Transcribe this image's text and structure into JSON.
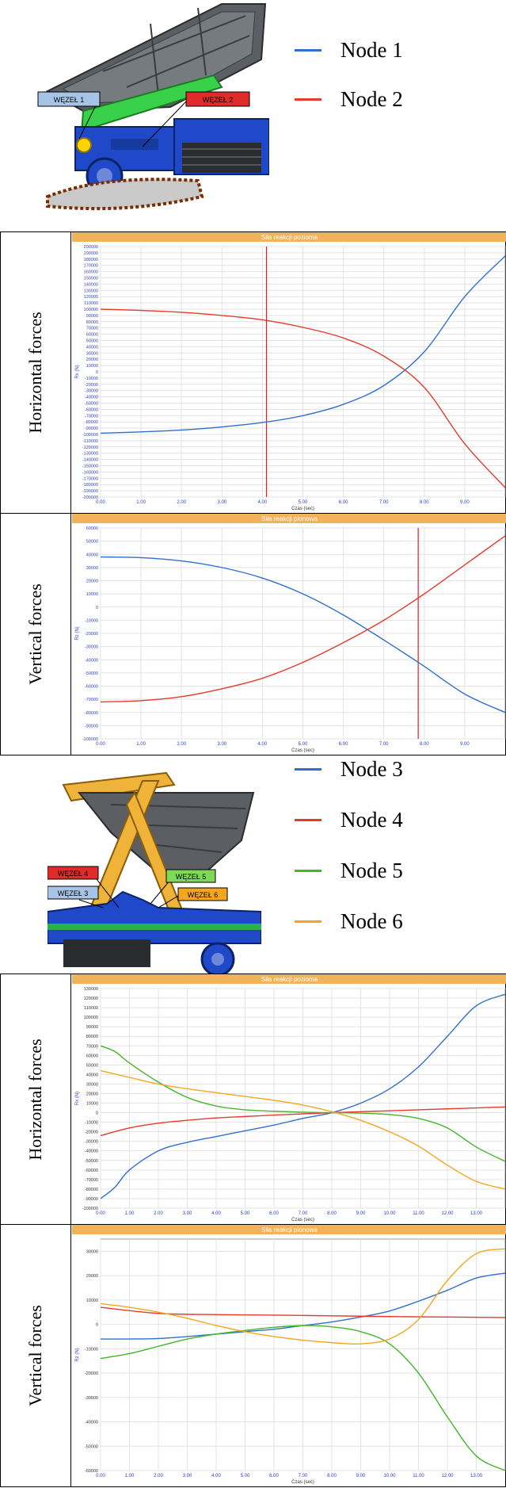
{
  "top_legend": [
    {
      "label": "Node 1",
      "color": "#2f6fd0"
    },
    {
      "label": "Node 2",
      "color": "#e53b2a"
    }
  ],
  "top_tags": {
    "wezel1": "WĘZEŁ 1",
    "wezel2": "WĘZEŁ 2"
  },
  "bottom_legend": [
    {
      "label": "Node 3",
      "color": "#2f6fd0"
    },
    {
      "label": "Node 4",
      "color": "#e53b2a"
    },
    {
      "label": "Node 5",
      "color": "#45b52a"
    },
    {
      "label": "Node 6",
      "color": "#f5a51e"
    }
  ],
  "bottom_tags": {
    "wezel3": "WĘZEŁ 3",
    "wezel4": "WĘZEŁ 4",
    "wezel5": "WĘZEŁ 5",
    "wezel6": "WĘZEŁ 6"
  },
  "row_labels": {
    "p1": "Horizontal forces",
    "p2": "Vertical forces",
    "p3": "Horizontal forces",
    "p4": "Vertical forces"
  },
  "chart_data": [
    {
      "id": "p1",
      "type": "line",
      "title": "Siła reakcji pozioma",
      "xlabel": "Czas (sec)",
      "ylabel": "Rx (N)",
      "xlim": [
        0,
        10
      ],
      "ylim": [
        -200000,
        200000
      ],
      "x_ticks": [
        0,
        1,
        2,
        3,
        4,
        5,
        6,
        7,
        8,
        9
      ],
      "x_tick_labels": [
        "0.00",
        "1.00",
        "2.00",
        "3.00",
        "4.00",
        "5.00",
        "6.00",
        "7.00",
        "8.00",
        "9.00"
      ],
      "y_tick_step": 10000,
      "cursor_x": 4.1,
      "series": [
        {
          "color": "#2f6fd0",
          "x": [
            0,
            1,
            2,
            3,
            4,
            5,
            6,
            7,
            8,
            9,
            10
          ],
          "y": [
            -98000,
            -96000,
            -93000,
            -88000,
            -81000,
            -70000,
            -52000,
            -22000,
            32000,
            120000,
            185000
          ]
        },
        {
          "color": "#e53b2a",
          "x": [
            0,
            1,
            2,
            3,
            4,
            5,
            6,
            7,
            8,
            9,
            10
          ],
          "y": [
            100000,
            98000,
            95000,
            90000,
            83000,
            71000,
            54000,
            25000,
            -25000,
            -115000,
            -185000
          ]
        }
      ]
    },
    {
      "id": "p2",
      "type": "line",
      "title": "Siła reakcji pionowa",
      "xlabel": "Czas (sec)",
      "ylabel": "Rz (N)",
      "xlim": [
        0,
        10
      ],
      "ylim": [
        -100000,
        60000
      ],
      "x_ticks": [
        0,
        1,
        2,
        3,
        4,
        5,
        6,
        7,
        8,
        9
      ],
      "x_tick_labels": [
        "0.00",
        "1.00",
        "2.00",
        "3.00",
        "4.00",
        "5.00",
        "6.00",
        "7.00",
        "8.00",
        "9.00"
      ],
      "y_tick_step": 10000,
      "cursor_x": 7.85,
      "series": [
        {
          "color": "#2f6fd0",
          "x": [
            0,
            1,
            2,
            3,
            4,
            5,
            6,
            7,
            8,
            9,
            10
          ],
          "y": [
            38000,
            37500,
            35000,
            30000,
            22000,
            10000,
            -6000,
            -25000,
            -45000,
            -66000,
            -80000
          ]
        },
        {
          "color": "#e53b2a",
          "x": [
            0,
            1,
            2,
            3,
            4,
            5,
            6,
            7,
            8,
            9,
            10
          ],
          "y": [
            -72000,
            -71000,
            -68000,
            -62000,
            -54000,
            -42000,
            -27000,
            -10000,
            10000,
            32000,
            54000
          ]
        }
      ]
    },
    {
      "id": "p3",
      "type": "line",
      "title": "Siła reakcji pozioma",
      "xlabel": "Czas (sec)",
      "ylabel": "Rx (N)",
      "xlim": [
        0,
        14
      ],
      "ylim": [
        -100000,
        130000
      ],
      "x_ticks": [
        0,
        1,
        2,
        3,
        4,
        5,
        6,
        7,
        8,
        9,
        10,
        11,
        12,
        13
      ],
      "x_tick_labels": [
        "0.00",
        "1.00",
        "2.00",
        "3.00",
        "4.00",
        "5.00",
        "6.00",
        "7.00",
        "8.00",
        "9.00",
        "10.00",
        "11.00",
        "12.00",
        "13.00"
      ],
      "y_tick_step": 10000,
      "series": [
        {
          "color": "#2f6fd0",
          "x": [
            0,
            0.5,
            1,
            2,
            3,
            4,
            5,
            6,
            7,
            8,
            9,
            10,
            11,
            12,
            13,
            14
          ],
          "y": [
            -90000,
            -78000,
            -60000,
            -40000,
            -31000,
            -25000,
            -19000,
            -13000,
            -6000,
            0,
            10000,
            25000,
            48000,
            80000,
            112000,
            124000
          ]
        },
        {
          "color": "#e53b2a",
          "x": [
            0,
            1,
            2,
            3,
            4,
            5,
            6,
            7,
            8,
            9,
            10,
            11,
            12,
            13,
            14
          ],
          "y": [
            -24000,
            -16000,
            -11000,
            -8000,
            -5500,
            -4000,
            -2500,
            -1200,
            0,
            1000,
            2000,
            3000,
            4000,
            5000,
            6000
          ]
        },
        {
          "color": "#45b52a",
          "x": [
            0,
            0.5,
            1,
            2,
            3,
            4,
            5,
            6,
            7,
            8,
            9,
            10,
            11,
            12,
            13,
            14
          ],
          "y": [
            70000,
            64000,
            52000,
            32000,
            16000,
            7000,
            3000,
            1500,
            500,
            0,
            -500,
            -2000,
            -6000,
            -16000,
            -36000,
            -51000
          ]
        },
        {
          "color": "#f5a51e",
          "x": [
            0,
            1,
            2,
            3,
            4,
            5,
            6,
            7,
            8,
            9,
            10,
            11,
            12,
            13,
            14
          ],
          "y": [
            44000,
            37000,
            30000,
            25000,
            21000,
            17000,
            13000,
            8000,
            1000,
            -8000,
            -20000,
            -35000,
            -55000,
            -72000,
            -80000
          ]
        }
      ]
    },
    {
      "id": "p4",
      "type": "line",
      "title": "Siła reakcji pionowa",
      "xlabel": "Czas (sec)",
      "ylabel": "Rz (N)",
      "xlim": [
        0,
        14
      ],
      "ylim": [
        -60000,
        35000
      ],
      "x_ticks": [
        0,
        1,
        2,
        3,
        4,
        5,
        6,
        7,
        8,
        9,
        10,
        11,
        12,
        13
      ],
      "x_tick_labels": [
        "0.00",
        "1.00",
        "2.00",
        "3.00",
        "4.00",
        "5.00",
        "6.00",
        "7.00",
        "8.00",
        "9.00",
        "10.00",
        "11.00",
        "12.00",
        "13.00"
      ],
      "y_tick_step": 10000,
      "series": [
        {
          "color": "#2f6fd0",
          "x": [
            0,
            1,
            2,
            3,
            4,
            5,
            6,
            7,
            8,
            9,
            10,
            11,
            12,
            13,
            14
          ],
          "y": [
            -6000,
            -6000,
            -5800,
            -5000,
            -4000,
            -3000,
            -2000,
            -500,
            1000,
            3000,
            5500,
            9500,
            14000,
            19000,
            21000
          ]
        },
        {
          "color": "#e53b2a",
          "x": [
            0,
            2,
            4,
            6,
            8,
            10,
            12,
            14
          ],
          "y": [
            7000,
            4500,
            4000,
            3800,
            3500,
            3200,
            3000,
            2800
          ]
        },
        {
          "color": "#45b52a",
          "x": [
            0,
            1,
            2,
            3,
            4,
            5,
            6,
            7,
            8,
            9,
            10,
            11,
            12,
            13,
            14
          ],
          "y": [
            -14000,
            -12000,
            -9000,
            -6000,
            -4000,
            -2500,
            -1200,
            -500,
            -1000,
            -3000,
            -8000,
            -20000,
            -38000,
            -54000,
            -60000
          ]
        },
        {
          "color": "#f5a51e",
          "x": [
            0,
            1,
            2,
            3,
            4,
            5,
            6,
            7,
            8,
            9,
            10,
            11,
            12,
            13,
            14
          ],
          "y": [
            8500,
            7000,
            5000,
            2500,
            -500,
            -3000,
            -5000,
            -6500,
            -7500,
            -8000,
            -6000,
            2000,
            18000,
            29000,
            31000
          ]
        }
      ]
    }
  ]
}
